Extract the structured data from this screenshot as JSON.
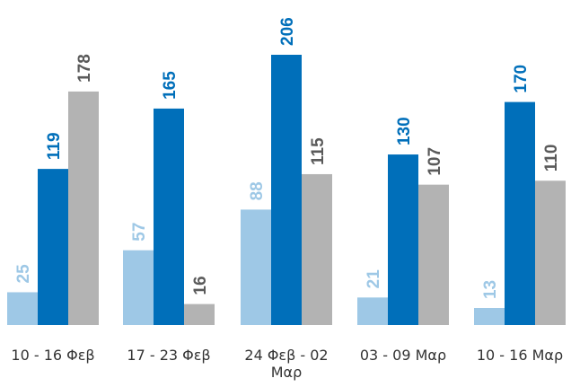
{
  "chart_data": {
    "type": "bar",
    "title": "",
    "xlabel": "",
    "ylabel": "",
    "ylim": [
      0,
      206
    ],
    "grid": false,
    "categories": [
      [
        "10 - 16 Φεβ"
      ],
      [
        "17 - 23 Φεβ"
      ],
      [
        "24 Φεβ - 02",
        "Μαρ"
      ],
      [
        "03 - 09 Μαρ"
      ],
      [
        "10 - 16 Μαρ"
      ]
    ],
    "series": [
      {
        "color": "#9ec8e6",
        "label_color": "#9ec8e6",
        "values": [
          25,
          57,
          88,
          21,
          13
        ]
      },
      {
        "color": "#006fba",
        "label_color": "#006fba",
        "values": [
          119,
          165,
          206,
          130,
          170
        ]
      },
      {
        "color": "#b3b3b3",
        "label_color": "#5a5a5a",
        "values": [
          178,
          16,
          115,
          107,
          110
        ]
      }
    ]
  }
}
